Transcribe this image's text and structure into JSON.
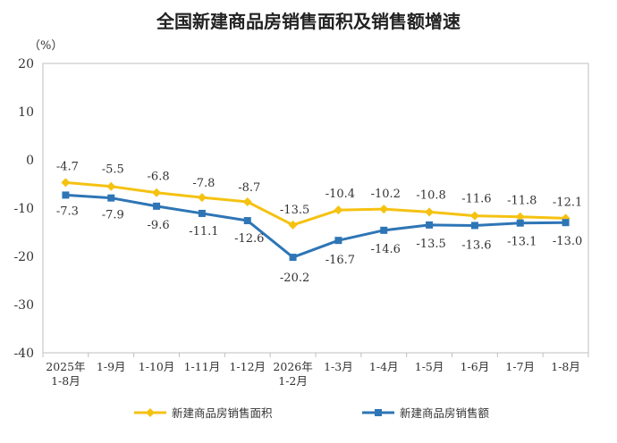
{
  "chart_data": {
    "type": "line",
    "title": "全国新建商品房销售面积及销售额增速",
    "unit_label": "（%）",
    "categories": [
      [
        "2025年",
        "1-8月"
      ],
      [
        "1-9月"
      ],
      [
        "1-10月"
      ],
      [
        "1-11月"
      ],
      [
        "1-12月"
      ],
      [
        "2026年",
        "1-2月"
      ],
      [
        "1-3月"
      ],
      [
        "1-4月"
      ],
      [
        "1-5月"
      ],
      [
        "1-6月"
      ],
      [
        "1-7月"
      ],
      [
        "1-8月"
      ]
    ],
    "ylim": [
      -40,
      20
    ],
    "yticks": [
      20,
      10,
      0,
      -10,
      -20,
      -30,
      -40
    ],
    "grid": false,
    "legend_position": "bottom",
    "series": [
      {
        "name": "新建商品房销售面积",
        "color": "#F5C211",
        "marker": "diamond",
        "values": [
          -4.7,
          -5.5,
          -6.8,
          -7.8,
          -8.7,
          -13.5,
          -10.4,
          -10.2,
          -10.8,
          -11.6,
          -11.8,
          -12.1
        ],
        "labels": [
          "-4.7",
          "-5.5",
          "-6.8",
          "-7.8",
          "-8.7",
          "-13.5",
          "-10.4",
          "-10.2",
          "-10.8",
          "-11.6",
          "-11.8",
          "-12.1"
        ]
      },
      {
        "name": "新建商品房销售额",
        "color": "#2E75B6",
        "marker": "square",
        "values": [
          -7.3,
          -7.9,
          -9.6,
          -11.1,
          -12.6,
          -20.2,
          -16.7,
          -14.6,
          -13.5,
          -13.6,
          -13.1,
          -13.0
        ],
        "labels": [
          "-7.3",
          "-7.9",
          "-9.6",
          "-11.1",
          "-12.6",
          "-20.2",
          "-16.7",
          "-14.6",
          "-13.5",
          "-13.6",
          "-13.1",
          "-13.0"
        ]
      }
    ]
  }
}
